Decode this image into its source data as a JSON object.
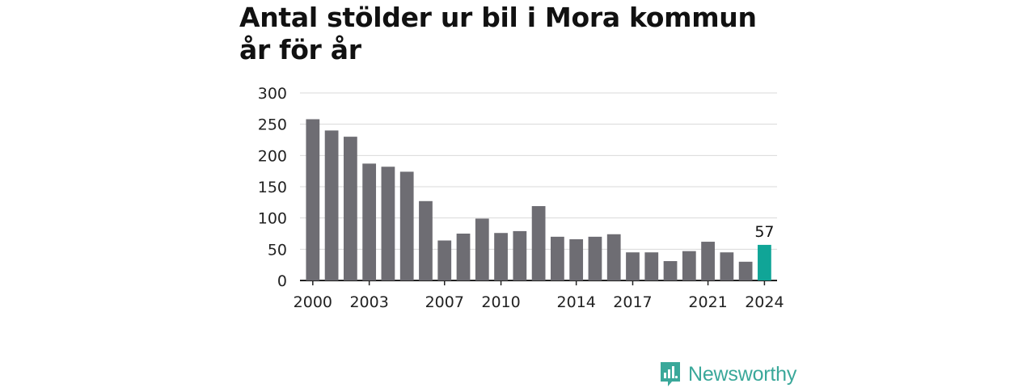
{
  "title": "Antal stölder ur bil i Mora kommun år för år",
  "brand": {
    "name": "Newsworthy",
    "color": "#3aa89a"
  },
  "colors": {
    "bar": "#6e6d73",
    "highlight": "#10a597",
    "grid": "#d9d9d9",
    "axis": "#222222"
  },
  "chart_data": {
    "type": "bar",
    "title": "Antal stölder ur bil i Mora kommun år för år",
    "xlabel": "",
    "ylabel": "",
    "ylim": [
      0,
      300
    ],
    "yticks": [
      0,
      50,
      100,
      150,
      200,
      250,
      300
    ],
    "categories": [
      "2000",
      "2001",
      "2002",
      "2003",
      "2004",
      "2005",
      "2006",
      "2007",
      "2008",
      "2009",
      "2010",
      "2011",
      "2012",
      "2013",
      "2014",
      "2015",
      "2016",
      "2017",
      "2018",
      "2019",
      "2020",
      "2021",
      "2022",
      "2023",
      "2024"
    ],
    "xtick_labels": [
      "2000",
      "2003",
      "2007",
      "2010",
      "2014",
      "2017",
      "2021",
      "2024"
    ],
    "values": [
      258,
      240,
      230,
      187,
      182,
      174,
      127,
      64,
      75,
      99,
      76,
      79,
      119,
      70,
      66,
      70,
      74,
      45,
      45,
      31,
      47,
      62,
      45,
      30,
      57
    ],
    "highlight": {
      "category": "2024",
      "label": "57"
    },
    "grid": true,
    "legend": "none"
  }
}
